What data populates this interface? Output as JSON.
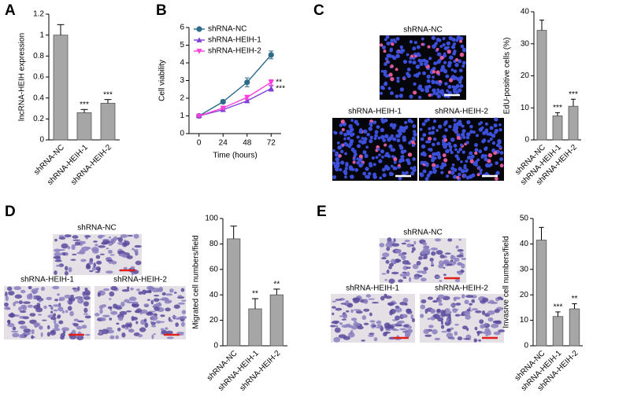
{
  "panel_labels": [
    "A",
    "B",
    "C",
    "D",
    "E"
  ],
  "chart_data": [
    {
      "type": "bar",
      "ylabel": "lncRNA-HEIH expression",
      "categories": [
        "shRNA-NC",
        "shRNA-HEIH-1",
        "shRNA-HEIH-2"
      ],
      "values": [
        1.0,
        0.26,
        0.35
      ],
      "errors": [
        0.1,
        0.03,
        0.035
      ],
      "annotations": [
        null,
        "***",
        "***"
      ],
      "color": "#a6a6a6",
      "ylim": [
        0,
        1.2
      ],
      "yticks": [
        0,
        0.2,
        0.4,
        0.6,
        0.8,
        1,
        1.2
      ]
    },
    {
      "type": "line",
      "xlabel": "Time (hours)",
      "ylabel": "Cell viability",
      "x": [
        0,
        24,
        48,
        72
      ],
      "xlim": [
        -10,
        82
      ],
      "xticks": [
        0,
        24,
        48,
        72
      ],
      "ylim": [
        0,
        6
      ],
      "yticks": [
        0,
        1,
        2,
        3,
        4,
        5,
        6
      ],
      "legend": "upper left",
      "series": [
        {
          "name": "shRNA-NC",
          "color": "#2e6b8a",
          "marker": "circle",
          "values": [
            1,
            1.8,
            2.9,
            4.45
          ],
          "errors": [
            0.05,
            0.1,
            0.25,
            0.22
          ],
          "annotation": null
        },
        {
          "name": "shRNA-HEIH-1",
          "color": "#7d3fd6",
          "marker": "triangle",
          "values": [
            1,
            1.35,
            1.85,
            2.55
          ],
          "errors": [
            0.03,
            0.08,
            0.1,
            0.15
          ],
          "annotation": "***"
        },
        {
          "name": "shRNA-HEIH-2",
          "color": "#ff3fdc",
          "marker": "triangle-down",
          "values": [
            1,
            1.45,
            2.05,
            2.9
          ],
          "errors": [
            0.04,
            0.08,
            0.12,
            0.15
          ],
          "annotation": "**"
        }
      ]
    },
    {
      "type": "bar",
      "ylabel": "EdU-positive cells (%)",
      "categories": [
        "shRNA-NC",
        "shRNA-HEIH-1",
        "shRNA-HEIH-2"
      ],
      "values": [
        34.2,
        7.5,
        10.5
      ],
      "errors": [
        3.2,
        1.0,
        2.2
      ],
      "annotations": [
        null,
        "***",
        "***"
      ],
      "color": "#a6a6a6",
      "ylim": [
        0,
        40
      ],
      "yticks": [
        0,
        10,
        20,
        30,
        40
      ]
    },
    {
      "type": "bar",
      "ylabel": "Migrated cell numbers/field",
      "categories": [
        "shRNA-NC",
        "shRNA-HEIH-1",
        "shRNA-HEIH-2"
      ],
      "values": [
        84,
        29,
        40
      ],
      "errors": [
        10,
        8,
        4.5
      ],
      "annotations": [
        null,
        "**",
        "**"
      ],
      "color": "#a6a6a6",
      "ylim": [
        0,
        100
      ],
      "yticks": [
        0,
        20,
        40,
        60,
        80,
        100
      ]
    },
    {
      "type": "bar",
      "ylabel": "Invasive cell numbers/field",
      "categories": [
        "shRNA-NC",
        "shRNA-HEIH-1",
        "shRNA-HEIH-2"
      ],
      "values": [
        41.5,
        11.5,
        14.5
      ],
      "errors": [
        5,
        1.8,
        2
      ],
      "annotations": [
        null,
        "***",
        "**"
      ],
      "color": "#a6a6a6",
      "ylim": [
        0,
        50
      ],
      "yticks": [
        0,
        10,
        20,
        30,
        40,
        50
      ]
    }
  ],
  "micrographs": [
    [
      "shRNA-NC",
      "shRNA-HEIH-1",
      "shRNA-HEIH-2"
    ],
    [
      "shRNA-NC",
      "shRNA-HEIH-1",
      "shRNA-HEIH-2"
    ],
    [
      "shRNA-NC",
      "shRNA-HEIH-1",
      "shRNA-HEIH-2"
    ]
  ]
}
